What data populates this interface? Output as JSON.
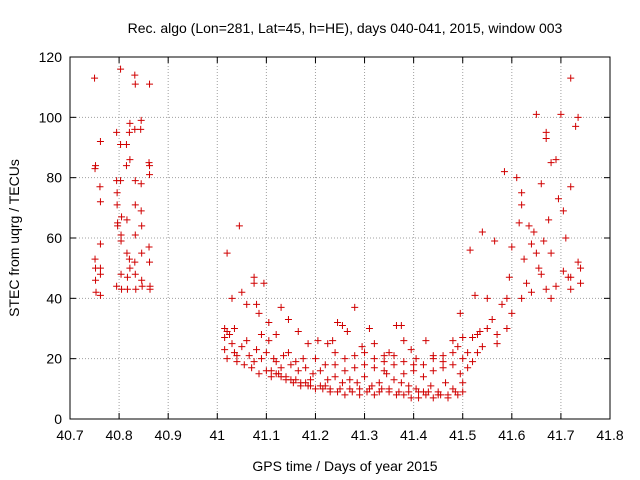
{
  "chart_data": {
    "type": "scatter",
    "title": "Rec. algo (Lon=281, Lat=45, h=HE), days 040-041, 2015, window 003",
    "xlabel": "GPS time / Days of year 2015",
    "ylabel": "STEC from uqrg / TECUs",
    "xlim": [
      40.7,
      41.8
    ],
    "ylim": [
      0,
      120
    ],
    "x_ticks": [
      "40.7",
      "40.8",
      "40.9",
      "41",
      "41.1",
      "41.2",
      "41.3",
      "41.4",
      "41.5",
      "41.6",
      "41.7",
      "41.8"
    ],
    "y_ticks": [
      "0",
      "20",
      "40",
      "60",
      "80",
      "100",
      "120"
    ],
    "grid": true,
    "marker": "+",
    "color": "#d00000",
    "series": [
      {
        "points": [
          [
            40.75,
            113
          ],
          [
            40.752,
            84
          ],
          [
            40.751,
            83
          ],
          [
            40.751,
            53
          ],
          [
            40.752,
            50
          ],
          [
            40.752,
            46
          ],
          [
            40.753,
            42
          ],
          [
            40.762,
            92
          ],
          [
            40.761,
            77
          ],
          [
            40.762,
            72
          ],
          [
            40.762,
            58
          ],
          [
            40.762,
            50
          ],
          [
            40.762,
            48
          ],
          [
            40.762,
            41
          ],
          [
            40.795,
            95
          ],
          [
            40.795,
            79
          ],
          [
            40.796,
            75
          ],
          [
            40.796,
            71
          ],
          [
            40.797,
            65
          ],
          [
            40.797,
            64
          ],
          [
            40.795,
            44
          ],
          [
            40.803,
            116
          ],
          [
            40.803,
            91
          ],
          [
            40.803,
            79
          ],
          [
            40.805,
            67
          ],
          [
            40.804,
            61
          ],
          [
            40.804,
            59
          ],
          [
            40.804,
            48
          ],
          [
            40.805,
            43
          ],
          [
            40.815,
            91
          ],
          [
            40.815,
            84
          ],
          [
            40.816,
            66
          ],
          [
            40.816,
            55
          ],
          [
            40.817,
            47
          ],
          [
            40.817,
            43
          ],
          [
            40.822,
            98
          ],
          [
            40.821,
            95
          ],
          [
            40.822,
            86
          ],
          [
            40.821,
            53
          ],
          [
            40.822,
            50
          ],
          [
            40.832,
            114
          ],
          [
            40.833,
            111
          ],
          [
            40.832,
            96
          ],
          [
            40.833,
            79
          ],
          [
            40.833,
            71
          ],
          [
            40.833,
            61
          ],
          [
            40.832,
            52
          ],
          [
            40.833,
            48
          ],
          [
            40.834,
            43
          ],
          [
            40.845,
            99
          ],
          [
            40.844,
            96
          ],
          [
            40.845,
            78
          ],
          [
            40.845,
            69
          ],
          [
            40.846,
            64
          ],
          [
            40.846,
            55
          ],
          [
            40.846,
            46
          ],
          [
            40.847,
            44
          ],
          [
            40.862,
            111
          ],
          [
            40.861,
            85
          ],
          [
            40.862,
            84
          ],
          [
            40.862,
            81
          ],
          [
            40.861,
            57
          ],
          [
            40.862,
            52
          ],
          [
            40.863,
            44
          ],
          [
            40.863,
            43
          ],
          [
            41.02,
            55
          ],
          [
            41.015,
            30
          ],
          [
            41.02,
            29
          ],
          [
            41.03,
            40
          ],
          [
            41.035,
            30
          ],
          [
            41.045,
            64
          ],
          [
            41.05,
            42
          ],
          [
            41.06,
            38
          ],
          [
            41.075,
            47
          ],
          [
            41.075,
            45
          ],
          [
            41.08,
            38
          ],
          [
            41.085,
            35
          ],
          [
            41.095,
            45
          ],
          [
            41.105,
            32
          ],
          [
            41.12,
            28
          ],
          [
            41.13,
            37
          ],
          [
            41.145,
            33
          ],
          [
            41.165,
            29
          ],
          [
            41.185,
            25
          ],
          [
            41.205,
            26
          ],
          [
            41.225,
            25
          ],
          [
            41.235,
            26
          ],
          [
            41.245,
            32
          ],
          [
            41.255,
            31
          ],
          [
            41.265,
            29
          ],
          [
            41.28,
            37
          ],
          [
            41.295,
            24
          ],
          [
            41.31,
            30
          ],
          [
            41.32,
            25
          ],
          [
            41.34,
            21
          ],
          [
            41.35,
            22
          ],
          [
            41.365,
            31
          ],
          [
            41.375,
            31
          ],
          [
            41.38,
            26
          ],
          [
            41.395,
            23
          ],
          [
            41.405,
            20
          ],
          [
            41.425,
            26
          ],
          [
            41.44,
            21
          ],
          [
            41.46,
            21
          ],
          [
            41.48,
            26
          ],
          [
            41.49,
            24
          ],
          [
            41.495,
            35
          ],
          [
            41.51,
            22
          ],
          [
            41.515,
            56
          ],
          [
            41.525,
            41
          ],
          [
            41.535,
            29
          ],
          [
            41.54,
            62
          ],
          [
            41.55,
            40
          ],
          [
            41.565,
            59
          ],
          [
            41.56,
            33
          ],
          [
            41.57,
            28
          ],
          [
            41.58,
            38
          ],
          [
            41.585,
            82
          ],
          [
            41.59,
            40
          ],
          [
            41.595,
            47
          ],
          [
            41.6,
            57
          ],
          [
            41.61,
            80
          ],
          [
            41.615,
            65
          ],
          [
            41.62,
            75
          ],
          [
            41.62,
            71
          ],
          [
            41.625,
            53
          ],
          [
            41.63,
            45
          ],
          [
            41.635,
            64
          ],
          [
            41.64,
            58
          ],
          [
            41.645,
            62
          ],
          [
            41.65,
            55
          ],
          [
            41.655,
            50
          ],
          [
            41.66,
            78
          ],
          [
            41.665,
            59
          ],
          [
            41.67,
            95
          ],
          [
            41.67,
            93
          ],
          [
            41.675,
            66
          ],
          [
            41.68,
            85
          ],
          [
            41.68,
            40
          ],
          [
            41.69,
            86
          ],
          [
            41.695,
            73
          ],
          [
            41.7,
            101
          ],
          [
            41.705,
            69
          ],
          [
            41.71,
            60
          ],
          [
            41.715,
            47
          ],
          [
            41.72,
            113
          ],
          [
            41.72,
            77
          ],
          [
            41.73,
            97
          ],
          [
            41.735,
            100
          ],
          [
            41.735,
            52
          ],
          [
            41.74,
            50
          ],
          [
            41.74,
            45
          ],
          [
            41.65,
            101
          ],
          [
            41.67,
            43
          ],
          [
            41.72,
            43
          ],
          [
            41.72,
            47
          ],
          [
            41.705,
            49
          ],
          [
            41.69,
            44
          ],
          [
            41.68,
            55
          ],
          [
            41.66,
            48
          ],
          [
            41.64,
            42
          ],
          [
            41.62,
            40
          ],
          [
            41.6,
            35
          ],
          [
            41.59,
            30
          ],
          [
            41.57,
            25
          ],
          [
            41.55,
            30
          ],
          [
            41.53,
            28
          ],
          [
            41.52,
            27
          ],
          [
            41.5,
            27
          ],
          [
            41.015,
            27
          ],
          [
            41.015,
            23
          ],
          [
            41.02,
            20
          ],
          [
            41.03,
            25
          ],
          [
            41.035,
            22
          ],
          [
            41.04,
            19
          ],
          [
            41.05,
            24
          ],
          [
            41.055,
            18
          ],
          [
            41.065,
            21
          ],
          [
            41.07,
            17
          ],
          [
            41.08,
            23
          ],
          [
            41.085,
            15
          ],
          [
            41.09,
            20
          ],
          [
            41.1,
            16
          ],
          [
            41.105,
            26
          ],
          [
            41.11,
            14
          ],
          [
            41.12,
            19
          ],
          [
            41.125,
            15
          ],
          [
            41.135,
            21
          ],
          [
            41.14,
            13
          ],
          [
            41.15,
            18
          ],
          [
            41.155,
            12
          ],
          [
            41.165,
            16
          ],
          [
            41.17,
            11
          ],
          [
            41.18,
            17
          ],
          [
            41.185,
            11
          ],
          [
            41.195,
            15
          ],
          [
            41.2,
            10
          ],
          [
            41.21,
            16
          ],
          [
            41.215,
            10
          ],
          [
            41.225,
            13
          ],
          [
            41.23,
            9
          ],
          [
            41.24,
            14
          ],
          [
            41.245,
            9
          ],
          [
            41.255,
            12
          ],
          [
            41.26,
            8
          ],
          [
            41.27,
            13
          ],
          [
            41.275,
            9
          ],
          [
            41.285,
            12
          ],
          [
            41.29,
            8
          ],
          [
            41.3,
            14
          ],
          [
            41.305,
            9
          ],
          [
            41.315,
            11
          ],
          [
            41.32,
            8
          ],
          [
            41.33,
            12
          ],
          [
            41.335,
            10
          ],
          [
            41.345,
            15
          ],
          [
            41.35,
            9
          ],
          [
            41.36,
            13
          ],
          [
            41.365,
            8
          ],
          [
            41.375,
            12
          ],
          [
            41.38,
            8
          ],
          [
            41.39,
            11
          ],
          [
            41.395,
            7
          ],
          [
            41.405,
            10
          ],
          [
            41.41,
            7
          ],
          [
            41.42,
            9
          ],
          [
            41.425,
            8
          ],
          [
            41.435,
            11
          ],
          [
            41.44,
            7
          ],
          [
            41.45,
            9
          ],
          [
            41.455,
            8
          ],
          [
            41.465,
            12
          ],
          [
            41.47,
            7
          ],
          [
            41.48,
            10
          ],
          [
            41.485,
            9
          ],
          [
            41.495,
            15
          ],
          [
            41.5,
            12
          ],
          [
            41.51,
            17
          ],
          [
            41.52,
            19
          ],
          [
            41.53,
            22
          ],
          [
            41.54,
            24
          ],
          [
            41.025,
            28
          ],
          [
            41.04,
            21
          ],
          [
            41.06,
            26
          ],
          [
            41.075,
            19
          ],
          [
            41.09,
            28
          ],
          [
            41.1,
            22
          ],
          [
            41.115,
            20
          ],
          [
            41.13,
            17
          ],
          [
            41.145,
            22
          ],
          [
            41.16,
            19
          ],
          [
            41.175,
            20
          ],
          [
            41.19,
            13
          ],
          [
            41.2,
            20
          ],
          [
            41.22,
            18
          ],
          [
            41.24,
            18
          ],
          [
            41.26,
            16
          ],
          [
            41.28,
            17
          ],
          [
            41.3,
            18
          ],
          [
            41.32,
            17
          ],
          [
            41.34,
            16
          ],
          [
            41.36,
            18
          ],
          [
            41.38,
            15
          ],
          [
            41.4,
            16
          ],
          [
            41.42,
            14
          ],
          [
            41.44,
            16
          ],
          [
            41.46,
            17
          ],
          [
            41.48,
            18
          ],
          [
            41.5,
            20
          ],
          [
            41.11,
            16
          ],
          [
            41.12,
            15
          ],
          [
            41.13,
            14
          ],
          [
            41.14,
            14
          ],
          [
            41.15,
            13
          ],
          [
            41.16,
            13
          ],
          [
            41.17,
            12
          ],
          [
            41.18,
            12
          ],
          [
            41.19,
            11
          ],
          [
            41.21,
            11
          ],
          [
            41.22,
            11
          ],
          [
            41.23,
            10
          ],
          [
            41.25,
            10
          ],
          [
            41.27,
            10
          ],
          [
            41.29,
            10
          ],
          [
            41.31,
            10
          ],
          [
            41.33,
            9
          ],
          [
            41.35,
            10
          ],
          [
            41.37,
            9
          ],
          [
            41.39,
            9
          ],
          [
            41.41,
            9
          ],
          [
            41.43,
            9
          ],
          [
            41.45,
            8
          ],
          [
            41.47,
            8
          ],
          [
            41.49,
            8
          ],
          [
            41.5,
            9
          ],
          [
            41.24,
            22
          ],
          [
            41.26,
            20
          ],
          [
            41.28,
            21
          ],
          [
            41.3,
            22
          ],
          [
            41.32,
            20
          ],
          [
            41.34,
            19
          ],
          [
            41.36,
            21
          ],
          [
            41.38,
            19
          ],
          [
            41.4,
            18
          ],
          [
            41.42,
            18
          ],
          [
            41.44,
            20
          ],
          [
            41.46,
            19
          ],
          [
            41.48,
            22
          ]
        ]
      }
    ]
  }
}
